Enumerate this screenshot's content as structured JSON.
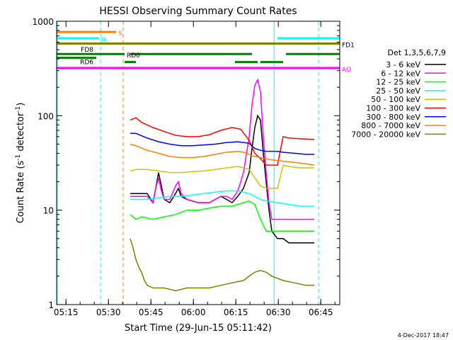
{
  "chart_data": {
    "type": "line",
    "title": "HESSI Observing Summary Count Rates",
    "xlabel": "Start Time (29-Jun-15 05:11:42)",
    "ylabel": "Count Rate (s",
    "ylabel_sup1": "-1",
    "ylabel_mid": " detector",
    "ylabel_sup2": "-1",
    "ylabel_end": ")",
    "x_unit": "minutes since 05:11:42",
    "xlim": [
      0,
      100
    ],
    "ylim": [
      1,
      1000
    ],
    "yscale": "log",
    "x_ticks": [
      {
        "x": 3.3,
        "label": "05:15"
      },
      {
        "x": 18.3,
        "label": "05:30"
      },
      {
        "x": 33.3,
        "label": "05:45"
      },
      {
        "x": 48.3,
        "label": "06:00"
      },
      {
        "x": 63.3,
        "label": "06:15"
      },
      {
        "x": 78.3,
        "label": "06:30"
      },
      {
        "x": 93.3,
        "label": "06:45"
      }
    ],
    "y_ticks": [
      {
        "y": 1,
        "label": "1"
      },
      {
        "y": 10,
        "label": "10"
      },
      {
        "y": 100,
        "label": "100"
      },
      {
        "y": 1000,
        "label": "1000"
      }
    ],
    "legend_title": "Det 1,3,5,6,7,9",
    "legend_position": "right",
    "series": [
      {
        "name": "3 - 6 keV",
        "color": "#000000",
        "points": [
          [
            26,
            15
          ],
          [
            32,
            15
          ],
          [
            34,
            12
          ],
          [
            35,
            17
          ],
          [
            36,
            25
          ],
          [
            37,
            18
          ],
          [
            38,
            13
          ],
          [
            40,
            12
          ],
          [
            42,
            15
          ],
          [
            43,
            17
          ],
          [
            44,
            14
          ],
          [
            46,
            13
          ],
          [
            50,
            12
          ],
          [
            54,
            12
          ],
          [
            56,
            13
          ],
          [
            58,
            14
          ],
          [
            60,
            13
          ],
          [
            62,
            12
          ],
          [
            64,
            14
          ],
          [
            66,
            17
          ],
          [
            68,
            25
          ],
          [
            69,
            45
          ],
          [
            70,
            75
          ],
          [
            71,
            100
          ],
          [
            72,
            90
          ],
          [
            73,
            40
          ],
          [
            74,
            20
          ],
          [
            75,
            10
          ],
          [
            76,
            6
          ],
          [
            78,
            5
          ],
          [
            80,
            5
          ],
          [
            82,
            4.5
          ],
          [
            86,
            4.5
          ],
          [
            91,
            4.5
          ]
        ]
      },
      {
        "name": "6 - 12 keV",
        "color": "#ff00ff",
        "points": [
          [
            26,
            14
          ],
          [
            32,
            14
          ],
          [
            34,
            12
          ],
          [
            35,
            17
          ],
          [
            36,
            22
          ],
          [
            37,
            16
          ],
          [
            38,
            13
          ],
          [
            40,
            13
          ],
          [
            42,
            18
          ],
          [
            43,
            20
          ],
          [
            44,
            15
          ],
          [
            46,
            13
          ],
          [
            50,
            12
          ],
          [
            54,
            12
          ],
          [
            56,
            13
          ],
          [
            58,
            14
          ],
          [
            60,
            14
          ],
          [
            62,
            13
          ],
          [
            64,
            16
          ],
          [
            66,
            25
          ],
          [
            68,
            60
          ],
          [
            69,
            130
          ],
          [
            70,
            210
          ],
          [
            71,
            240
          ],
          [
            72,
            180
          ],
          [
            73,
            60
          ],
          [
            74,
            25
          ],
          [
            75,
            12
          ],
          [
            76,
            8
          ],
          [
            78,
            8
          ],
          [
            86,
            8
          ],
          [
            91,
            8
          ]
        ]
      },
      {
        "name": "12 - 25 keV",
        "color": "#00ff00",
        "points": [
          [
            26,
            9
          ],
          [
            28,
            8
          ],
          [
            30,
            8.5
          ],
          [
            34,
            8
          ],
          [
            38,
            8.5
          ],
          [
            42,
            9
          ],
          [
            46,
            10
          ],
          [
            50,
            10
          ],
          [
            54,
            10.5
          ],
          [
            58,
            11
          ],
          [
            62,
            11
          ],
          [
            66,
            12
          ],
          [
            68,
            12.5
          ],
          [
            70,
            11.5
          ],
          [
            72,
            8
          ],
          [
            74,
            6
          ],
          [
            76,
            6
          ],
          [
            80,
            6
          ],
          [
            84,
            6
          ],
          [
            88,
            6
          ],
          [
            91,
            6
          ]
        ]
      },
      {
        "name": "25 - 50 keV",
        "color": "#00ffff",
        "points": [
          [
            26,
            13
          ],
          [
            28,
            13
          ],
          [
            32,
            13
          ],
          [
            36,
            13.5
          ],
          [
            40,
            14
          ],
          [
            44,
            14
          ],
          [
            48,
            14.5
          ],
          [
            52,
            15
          ],
          [
            56,
            15.5
          ],
          [
            60,
            16
          ],
          [
            64,
            16
          ],
          [
            68,
            15
          ],
          [
            70,
            14
          ],
          [
            72,
            13
          ],
          [
            74,
            12.5
          ],
          [
            78,
            12
          ],
          [
            82,
            11.5
          ],
          [
            86,
            11
          ],
          [
            91,
            11
          ]
        ]
      },
      {
        "name": "50 - 100 keV",
        "color": "#d4c200",
        "points": [
          [
            26,
            26
          ],
          [
            28,
            27
          ],
          [
            32,
            27
          ],
          [
            36,
            26
          ],
          [
            40,
            25
          ],
          [
            44,
            25
          ],
          [
            48,
            25.5
          ],
          [
            52,
            26
          ],
          [
            56,
            27
          ],
          [
            60,
            28
          ],
          [
            64,
            29
          ],
          [
            68,
            27
          ],
          [
            70,
            22
          ],
          [
            72,
            18
          ],
          [
            74,
            17
          ],
          [
            78,
            17
          ],
          [
            80,
            30
          ],
          [
            82,
            29
          ],
          [
            86,
            28
          ],
          [
            91,
            28
          ]
        ]
      },
      {
        "name": "100 - 300 keV",
        "color": "#ff0000",
        "points": [
          [
            26,
            90
          ],
          [
            28,
            95
          ],
          [
            30,
            85
          ],
          [
            34,
            75
          ],
          [
            38,
            68
          ],
          [
            42,
            62
          ],
          [
            46,
            60
          ],
          [
            50,
            60
          ],
          [
            54,
            63
          ],
          [
            58,
            70
          ],
          [
            62,
            75
          ],
          [
            65,
            72
          ],
          [
            68,
            55
          ],
          [
            70,
            40
          ],
          [
            72,
            35
          ],
          [
            74,
            30
          ],
          [
            76,
            30
          ],
          [
            78,
            30
          ],
          [
            80,
            60
          ],
          [
            82,
            58
          ],
          [
            86,
            57
          ],
          [
            91,
            56
          ]
        ]
      },
      {
        "name": "300 - 800 keV",
        "color": "#0000ff",
        "points": [
          [
            26,
            65
          ],
          [
            28,
            65
          ],
          [
            32,
            58
          ],
          [
            36,
            53
          ],
          [
            40,
            50
          ],
          [
            44,
            48
          ],
          [
            48,
            48
          ],
          [
            52,
            49
          ],
          [
            56,
            50
          ],
          [
            60,
            52
          ],
          [
            64,
            53
          ],
          [
            68,
            51
          ],
          [
            70,
            45
          ],
          [
            72,
            43
          ],
          [
            74,
            42
          ],
          [
            76,
            42
          ],
          [
            78,
            42
          ],
          [
            80,
            41
          ],
          [
            84,
            40
          ],
          [
            88,
            39
          ],
          [
            91,
            39
          ]
        ]
      },
      {
        "name": "800 - 7000 keV",
        "color": "#ff7f00",
        "points": [
          [
            26,
            50
          ],
          [
            28,
            48
          ],
          [
            32,
            43
          ],
          [
            36,
            40
          ],
          [
            40,
            37
          ],
          [
            44,
            36
          ],
          [
            48,
            36
          ],
          [
            52,
            37
          ],
          [
            56,
            39
          ],
          [
            60,
            41
          ],
          [
            64,
            42
          ],
          [
            66,
            41
          ],
          [
            68,
            39
          ],
          [
            70,
            37
          ],
          [
            72,
            36
          ],
          [
            74,
            35
          ],
          [
            76,
            34
          ],
          [
            80,
            33
          ],
          [
            84,
            32
          ],
          [
            88,
            31
          ],
          [
            91,
            30
          ]
        ]
      },
      {
        "name": "7000 - 20000 keV",
        "color": "#7f7f00",
        "points": [
          [
            26,
            5
          ],
          [
            27,
            4
          ],
          [
            28,
            3
          ],
          [
            29,
            2.5
          ],
          [
            30,
            2.2
          ],
          [
            31,
            1.8
          ],
          [
            32,
            1.6
          ],
          [
            34,
            1.5
          ],
          [
            38,
            1.5
          ],
          [
            42,
            1.4
          ],
          [
            46,
            1.5
          ],
          [
            50,
            1.5
          ],
          [
            54,
            1.5
          ],
          [
            58,
            1.6
          ],
          [
            62,
            1.7
          ],
          [
            66,
            1.8
          ],
          [
            68,
            2
          ],
          [
            70,
            2.2
          ],
          [
            72,
            2.3
          ],
          [
            74,
            2.2
          ],
          [
            76,
            2
          ],
          [
            80,
            1.8
          ],
          [
            84,
            1.7
          ],
          [
            88,
            1.6
          ],
          [
            91,
            1.6
          ]
        ]
      }
    ],
    "flag_rows": [
      {
        "label": "S",
        "label_color": "#ff7f00",
        "y": 770,
        "segments": [
          {
            "x0": 0,
            "x1": 21,
            "color": "#ff7f00"
          }
        ]
      },
      {
        "label": "N",
        "label_color": "#00ffff",
        "y": 660,
        "segments": [
          {
            "x0": 0,
            "x1": 15,
            "color": "#00ffff"
          },
          {
            "x0": 78,
            "x1": 100,
            "color": "#00ffff"
          }
        ]
      },
      {
        "label": "FD1",
        "label_color": "#000000",
        "y": 580,
        "segments": [
          {
            "x0": 0,
            "x1": 100,
            "color": "#7f7f00"
          }
        ]
      },
      {
        "label": "RD0",
        "label_color": "#000000",
        "y": 450,
        "segments": [
          {
            "x0": 0,
            "x1": 24,
            "color": "#008000"
          },
          {
            "x0": 26,
            "x1": 69,
            "color": "#008000"
          },
          {
            "x0": 81,
            "x1": 100,
            "color": "#008000"
          }
        ]
      },
      {
        "label": "AO",
        "label_color": "#ff00ff",
        "y": 320,
        "segments": [
          {
            "x0": 0,
            "x1": 100,
            "color": "#ff00ff"
          }
        ]
      }
    ],
    "side_labels": [
      {
        "text": "FD8",
        "color": "#000000",
        "y": 500
      },
      {
        "text": "RD6",
        "color": "#000000",
        "y": 370
      }
    ],
    "small_flag_segments": [
      {
        "x0": 0,
        "x1": 14,
        "y": 410,
        "color": "#008000"
      },
      {
        "x0": 24,
        "x1": 28,
        "y": 370,
        "color": "#008000"
      },
      {
        "x0": 63,
        "x1": 71,
        "y": 370,
        "color": "#008000"
      },
      {
        "x0": 72,
        "x1": 80,
        "y": 370,
        "color": "#008000"
      }
    ],
    "vertical_markers": [
      {
        "x": 0.3,
        "color": "#00ffff",
        "style": "solid"
      },
      {
        "x": 15.5,
        "color": "#00ffff",
        "style": "dashed"
      },
      {
        "x": 23.5,
        "color": "#ff7f00",
        "style": "dashed"
      },
      {
        "x": 76.8,
        "color": "#00ffff",
        "style": "solid"
      },
      {
        "x": 92.5,
        "color": "#00ffff",
        "style": "dashed"
      }
    ],
    "footer_date": "4-Dec-2017 18:47"
  }
}
